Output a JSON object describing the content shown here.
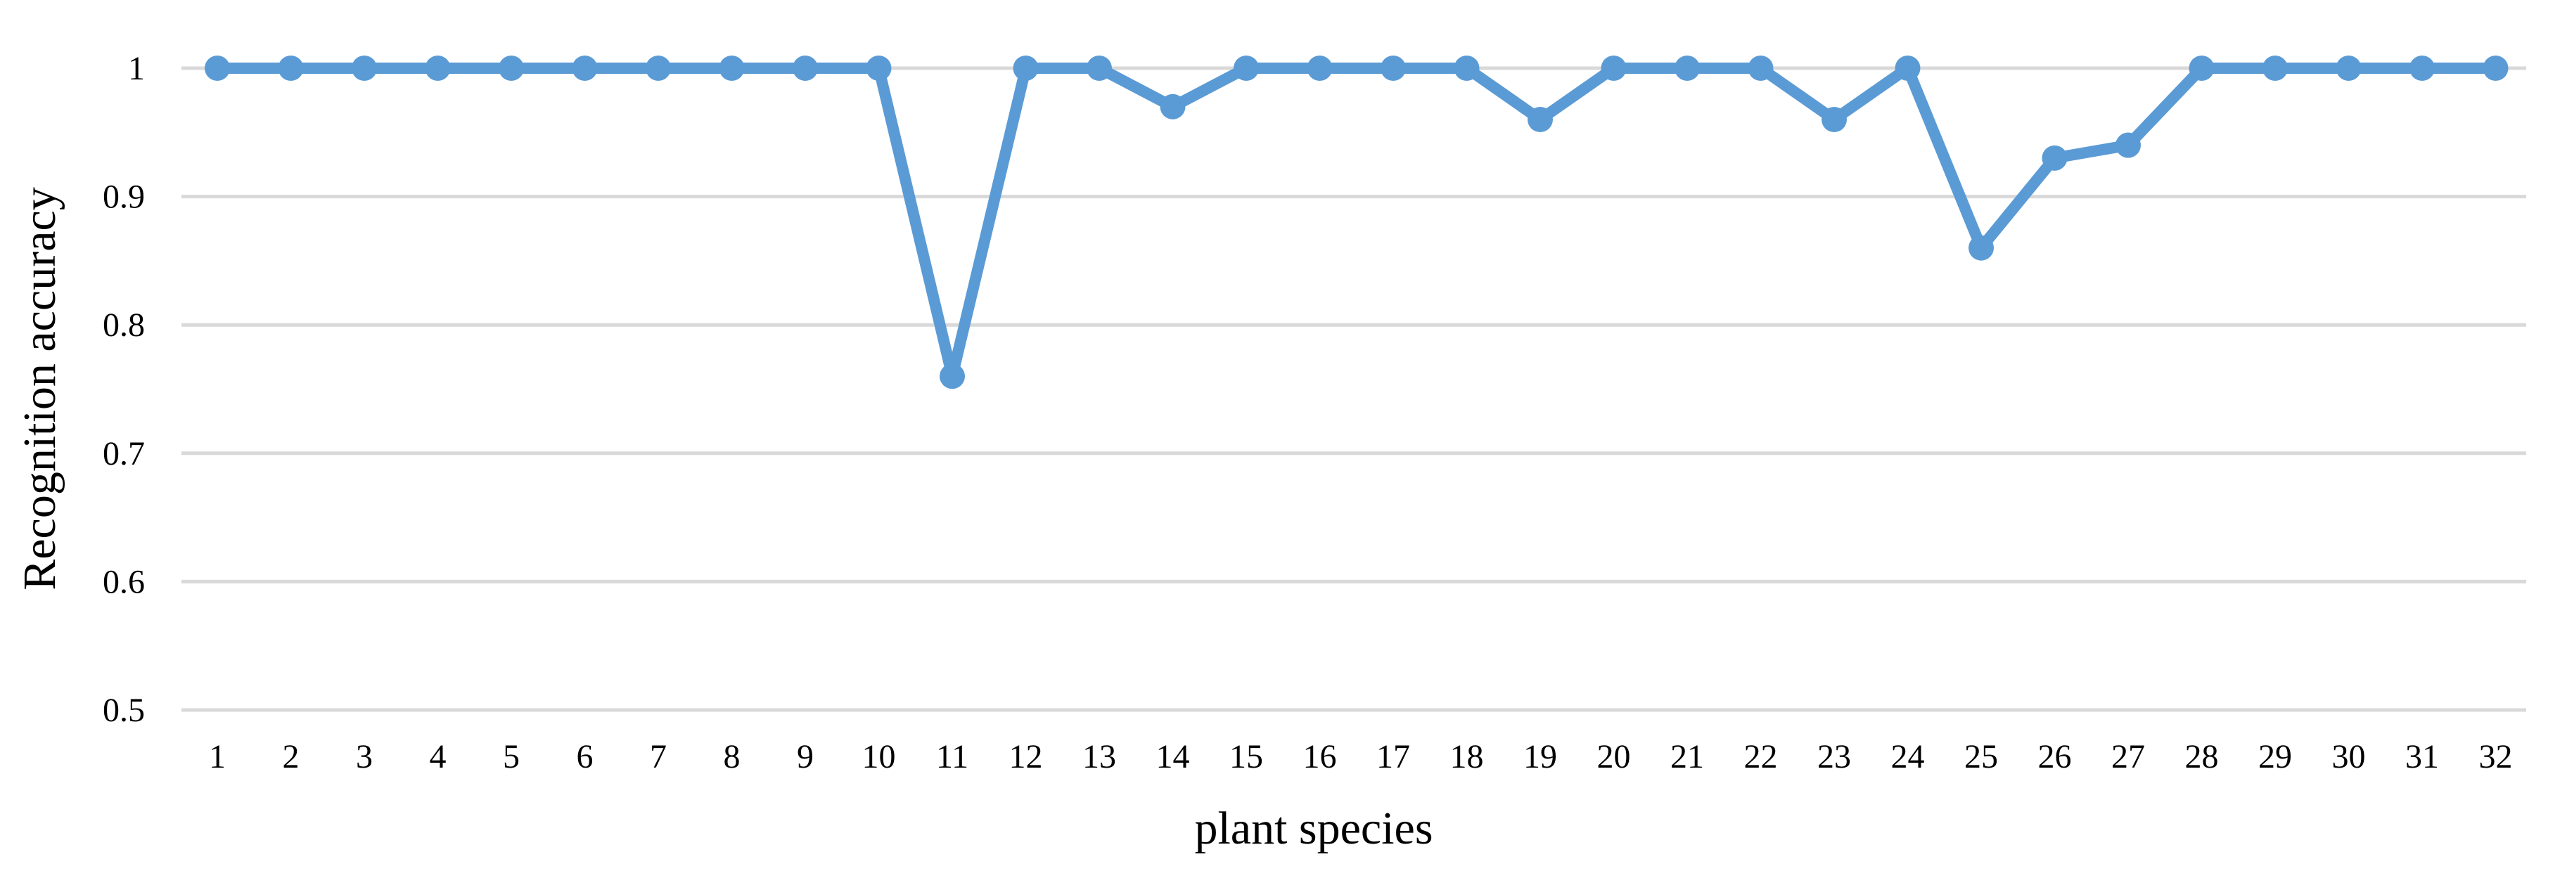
{
  "chart_data": {
    "type": "line",
    "title": "",
    "xlabel": "plant species",
    "ylabel": "Recognition accuracy",
    "x": [
      "1",
      "2",
      "3",
      "4",
      "5",
      "6",
      "7",
      "8",
      "9",
      "10",
      "11",
      "12",
      "13",
      "14",
      "15",
      "16",
      "17",
      "18",
      "19",
      "20",
      "21",
      "22",
      "23",
      "24",
      "25",
      "26",
      "27",
      "28",
      "29",
      "30",
      "31",
      "32"
    ],
    "series": [
      {
        "values": [
          1,
          1,
          1,
          1,
          1,
          1,
          1,
          1,
          1,
          1,
          0.76,
          1,
          1,
          0.97,
          1,
          1,
          1,
          1,
          0.96,
          1,
          1,
          1,
          0.96,
          1,
          0.86,
          0.93,
          0.94,
          1,
          1,
          1,
          1,
          1
        ],
        "color": "#5b9bd5"
      }
    ],
    "ylim": [
      0.5,
      1
    ],
    "yticks": [
      "0.5",
      "0.6",
      "0.7",
      "0.8",
      "0.9",
      "1"
    ],
    "grid": "horizontal",
    "legend": "none"
  }
}
